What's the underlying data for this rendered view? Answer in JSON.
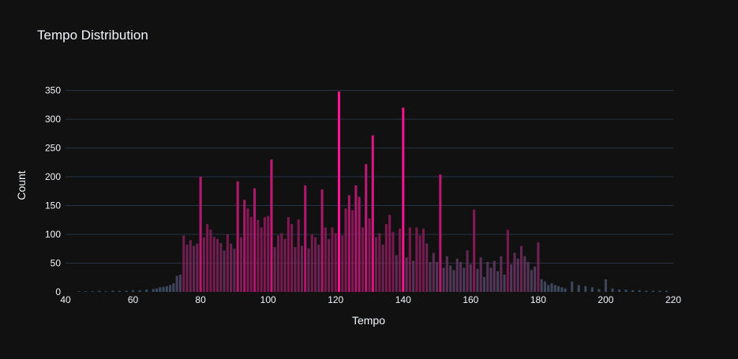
{
  "chart_data": {
    "type": "bar",
    "title": "Tempo Distribution",
    "xlabel": "Tempo",
    "ylabel": "Count",
    "xlim": [
      40,
      220
    ],
    "ylim": [
      0,
      370
    ],
    "xticks": [
      40,
      60,
      80,
      100,
      120,
      140,
      160,
      180,
      200,
      220
    ],
    "yticks": [
      0,
      50,
      100,
      150,
      200,
      250,
      300,
      350
    ],
    "grid": true,
    "legend": "none",
    "colorscale": {
      "low": "#3a5a6e",
      "mid": "#8a1a5a",
      "high": "#ff1493"
    },
    "x": [
      44,
      46,
      48,
      50,
      52,
      54,
      56,
      58,
      60,
      62,
      64,
      66,
      67,
      68,
      69,
      70,
      71,
      72,
      73,
      74,
      75,
      76,
      77,
      78,
      79,
      80,
      81,
      82,
      83,
      84,
      85,
      86,
      87,
      88,
      89,
      90,
      91,
      92,
      93,
      94,
      95,
      96,
      97,
      98,
      99,
      100,
      101,
      102,
      103,
      104,
      105,
      106,
      107,
      108,
      109,
      110,
      111,
      112,
      113,
      114,
      115,
      116,
      117,
      118,
      119,
      120,
      121,
      122,
      123,
      124,
      125,
      126,
      127,
      128,
      129,
      130,
      131,
      132,
      133,
      134,
      135,
      136,
      137,
      138,
      139,
      140,
      141,
      142,
      143,
      144,
      145,
      146,
      147,
      148,
      149,
      150,
      151,
      152,
      153,
      154,
      155,
      156,
      157,
      158,
      159,
      160,
      161,
      162,
      163,
      164,
      165,
      166,
      167,
      168,
      169,
      170,
      171,
      172,
      173,
      174,
      175,
      176,
      177,
      178,
      179,
      180,
      181,
      182,
      183,
      184,
      185,
      186,
      187,
      188,
      190,
      192,
      194,
      196,
      198,
      200,
      202,
      204,
      206,
      208,
      210,
      212,
      214,
      216,
      218
    ],
    "values": [
      1,
      1,
      1,
      2,
      1,
      2,
      2,
      2,
      3,
      3,
      4,
      5,
      6,
      8,
      9,
      10,
      12,
      15,
      28,
      30,
      98,
      82,
      90,
      80,
      84,
      200,
      95,
      118,
      108,
      96,
      92,
      85,
      72,
      100,
      84,
      75,
      192,
      95,
      160,
      145,
      130,
      180,
      125,
      112,
      130,
      132,
      230,
      78,
      98,
      102,
      92,
      130,
      118,
      78,
      126,
      80,
      185,
      76,
      100,
      95,
      82,
      178,
      112,
      92,
      112,
      102,
      348,
      98,
      145,
      168,
      142,
      185,
      165,
      112,
      222,
      128,
      272,
      95,
      102,
      82,
      118,
      134,
      104,
      64,
      110,
      320,
      60,
      112,
      54,
      112,
      98,
      110,
      84,
      52,
      68,
      52,
      204,
      42,
      62,
      46,
      38,
      58,
      52,
      42,
      72,
      48,
      143,
      40,
      60,
      26,
      52,
      42,
      54,
      36,
      62,
      30,
      108,
      48,
      68,
      58,
      80,
      62,
      52,
      38,
      44,
      86,
      22,
      18,
      12,
      15,
      12,
      10,
      8,
      6,
      18,
      12,
      10,
      8,
      5,
      22,
      6,
      4,
      4,
      3,
      3,
      2,
      2,
      2,
      2
    ]
  }
}
